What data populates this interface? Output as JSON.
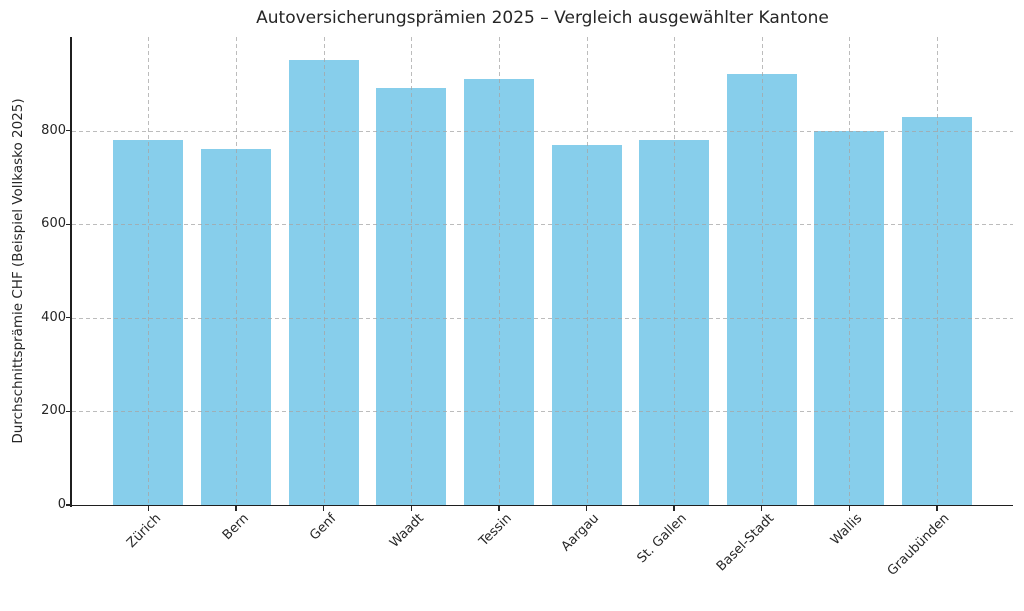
{
  "chart_data": {
    "type": "bar",
    "title": "Autoversicherungsprämien 2025 – Vergleich ausgewählter Kantone",
    "ylabel": "Durchschnittsprämie CHF (Beispiel Vollkasko 2025)",
    "xlabel": "",
    "categories": [
      "Zürich",
      "Bern",
      "Genf",
      "Waadt",
      "Tessin",
      "Aargau",
      "St. Gallen",
      "Basel-Stadt",
      "Wallis",
      "Graubünden"
    ],
    "values": [
      780,
      760,
      950,
      890,
      910,
      770,
      780,
      920,
      800,
      830
    ],
    "yticks": [
      0,
      200,
      400,
      600,
      800
    ],
    "ylim": [
      0,
      1000
    ],
    "bar_color": "#87CEEB",
    "grid": "both-dashed",
    "legend_position": "none",
    "axis_color": "#1f1f1f",
    "text_color": "#262626"
  }
}
